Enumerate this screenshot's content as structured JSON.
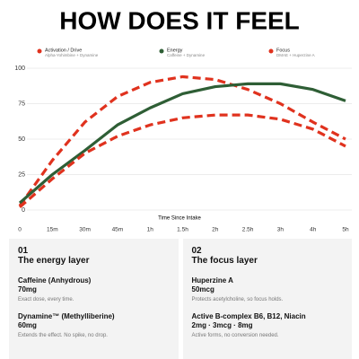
{
  "chart_data": {
    "type": "line",
    "title": "HOW DOES IT FEEL",
    "x_label": "Time Since Intake",
    "categories": [
      "0",
      "15m",
      "30m",
      "45m",
      "1h",
      "1.5h",
      "2h",
      "2.5h",
      "3h",
      "4h",
      "5h"
    ],
    "series": [
      {
        "name": "Activation / Drive",
        "description": "Alpha-Yohimbine + Dynamine",
        "color": "#e0321e",
        "dashed": true,
        "values": [
          3,
          35,
          62,
          80,
          90,
          94,
          92,
          85,
          75,
          62,
          50
        ]
      },
      {
        "name": "Energy",
        "description": "Caffeine + Dynamine",
        "color": "#2e5e35",
        "dashed": false,
        "values": [
          5,
          25,
          42,
          60,
          72,
          82,
          87,
          89,
          89,
          85,
          77
        ]
      },
      {
        "name": "Focus",
        "description": "DMAE + Huperzine A",
        "color": "#e0321e",
        "dashed": true,
        "values": [
          2,
          22,
          40,
          52,
          60,
          65,
          67,
          67,
          64,
          57,
          45
        ]
      }
    ],
    "ylim": [
      0,
      100
    ],
    "yticks": [
      0,
      25,
      50,
      75,
      100
    ],
    "grid": true
  },
  "cards": [
    {
      "number": "01",
      "title": "The energy layer",
      "items": [
        {
          "name": "Caffeine (Anhydrous)",
          "dose": "70mg",
          "note": "Exact dose, every time."
        },
        {
          "name": "Dynamine™ (Methylliberine)",
          "dose": "60mg",
          "note": "Extends the effect. No spike, no drop."
        }
      ]
    },
    {
      "number": "02",
      "title": "The focus layer",
      "items": [
        {
          "name": "Huperzine A",
          "dose": "50mcg",
          "note": "Protects acetylcholine, so focus holds."
        },
        {
          "name": "Active B-complex B6, B12, Niacin",
          "dose": "2mg · 3mcg · 8mg",
          "note": "Active forms, no conversion needed."
        }
      ]
    }
  ]
}
